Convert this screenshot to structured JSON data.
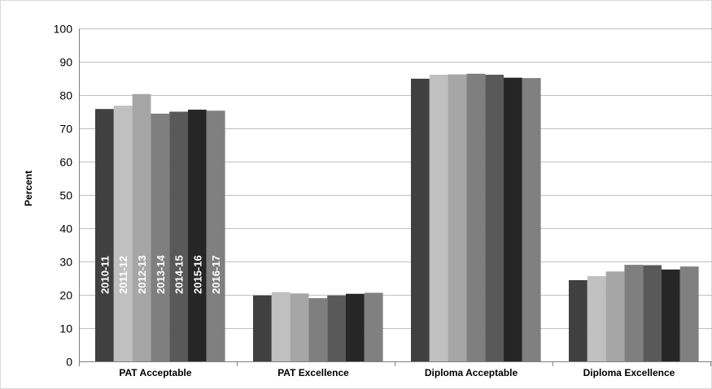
{
  "chart_data": {
    "type": "bar",
    "title": "",
    "xlabel": "",
    "ylabel": "Percent",
    "ylim": [
      0,
      100
    ],
    "yticks": [
      0,
      10,
      20,
      30,
      40,
      50,
      60,
      70,
      80,
      90,
      100
    ],
    "grid": true,
    "legend": "in-bars",
    "categories": [
      "PAT Acceptable",
      "PAT Excellence",
      "Diploma Acceptable",
      "Diploma Excellence"
    ],
    "series": [
      {
        "name": "2010-11",
        "color": "#404040",
        "values": [
          75.8,
          19.8,
          84.9,
          24.4
        ]
      },
      {
        "name": "2011-12",
        "color": "#c0c0c0",
        "values": [
          76.8,
          20.8,
          86.1,
          25.6
        ]
      },
      {
        "name": "2012-13",
        "color": "#a6a6a6",
        "values": [
          80.3,
          20.4,
          86.2,
          27.0
        ]
      },
      {
        "name": "2013-14",
        "color": "#7f7f7f",
        "values": [
          74.4,
          19.0,
          86.4,
          29.0
        ]
      },
      {
        "name": "2014-15",
        "color": "#595959",
        "values": [
          75.0,
          19.8,
          86.1,
          28.9
        ]
      },
      {
        "name": "2015-16",
        "color": "#262626",
        "values": [
          75.6,
          20.3,
          85.2,
          27.6
        ]
      },
      {
        "name": "2016-17",
        "color": "#808080",
        "values": [
          75.3,
          20.6,
          85.1,
          28.5
        ]
      }
    ]
  }
}
